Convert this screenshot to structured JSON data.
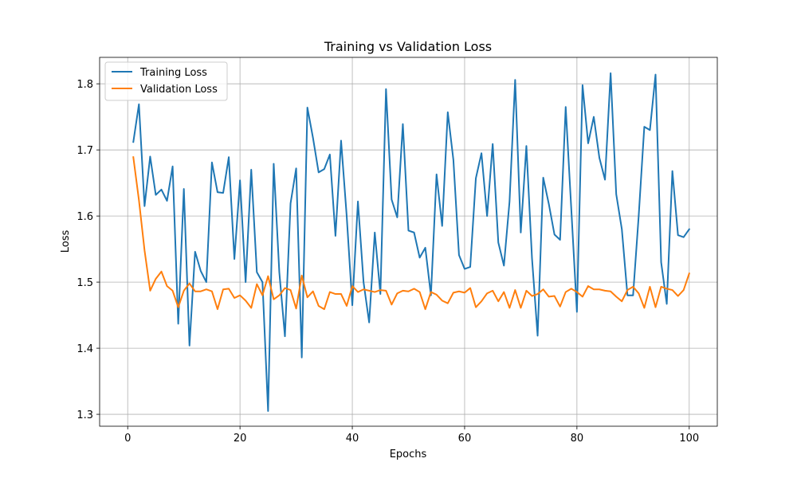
{
  "chart_data": {
    "type": "line",
    "title": "Training vs Validation Loss",
    "xlabel": "Epochs",
    "ylabel": "Loss",
    "xlim": [
      -5,
      105
    ],
    "ylim": [
      1.282,
      1.84
    ],
    "xticks": [
      0,
      20,
      40,
      60,
      80,
      100
    ],
    "yticks": [
      1.3,
      1.4,
      1.5,
      1.6,
      1.7,
      1.8
    ],
    "grid": true,
    "legend_position": "top-left",
    "series": [
      {
        "name": "Training Loss",
        "color": "#1f77b4",
        "values": [
          1.712,
          1.769,
          1.615,
          1.69,
          1.632,
          1.64,
          1.623,
          1.675,
          1.437,
          1.641,
          1.404,
          1.546,
          1.517,
          1.5,
          1.681,
          1.636,
          1.635,
          1.689,
          1.535,
          1.654,
          1.5,
          1.67,
          1.515,
          1.5,
          1.305,
          1.679,
          1.515,
          1.418,
          1.619,
          1.672,
          1.386,
          1.764,
          1.718,
          1.666,
          1.671,
          1.693,
          1.57,
          1.714,
          1.6,
          1.465,
          1.622,
          1.5,
          1.439,
          1.575,
          1.482,
          1.792,
          1.625,
          1.598,
          1.739,
          1.578,
          1.575,
          1.537,
          1.552,
          1.48,
          1.663,
          1.585,
          1.757,
          1.685,
          1.541,
          1.52,
          1.523,
          1.657,
          1.695,
          1.6,
          1.709,
          1.56,
          1.525,
          1.622,
          1.806,
          1.575,
          1.706,
          1.536,
          1.419,
          1.658,
          1.618,
          1.572,
          1.564,
          1.765,
          1.61,
          1.455,
          1.798,
          1.71,
          1.75,
          1.688,
          1.655,
          1.816,
          1.633,
          1.58,
          1.48,
          1.48,
          1.6,
          1.735,
          1.73,
          1.814,
          1.53,
          1.467,
          1.668,
          1.571,
          1.568,
          1.58
        ]
      },
      {
        "name": "Validation Loss",
        "color": "#ff7f0e",
        "values": [
          1.689,
          1.624,
          1.548,
          1.487,
          1.505,
          1.516,
          1.494,
          1.487,
          1.462,
          1.487,
          1.498,
          1.486,
          1.486,
          1.489,
          1.486,
          1.459,
          1.489,
          1.49,
          1.476,
          1.48,
          1.472,
          1.461,
          1.497,
          1.48,
          1.509,
          1.474,
          1.48,
          1.491,
          1.488,
          1.46,
          1.51,
          1.477,
          1.486,
          1.464,
          1.459,
          1.485,
          1.482,
          1.482,
          1.464,
          1.494,
          1.485,
          1.489,
          1.487,
          1.485,
          1.488,
          1.487,
          1.466,
          1.483,
          1.487,
          1.486,
          1.49,
          1.485,
          1.459,
          1.485,
          1.481,
          1.472,
          1.468,
          1.484,
          1.486,
          1.484,
          1.491,
          1.462,
          1.471,
          1.483,
          1.487,
          1.471,
          1.485,
          1.461,
          1.488,
          1.461,
          1.487,
          1.479,
          1.482,
          1.489,
          1.478,
          1.479,
          1.463,
          1.485,
          1.49,
          1.485,
          1.478,
          1.494,
          1.489,
          1.489,
          1.487,
          1.486,
          1.478,
          1.471,
          1.488,
          1.493,
          1.483,
          1.461,
          1.493,
          1.462,
          1.493,
          1.49,
          1.488,
          1.479,
          1.488,
          1.513
        ]
      }
    ]
  }
}
